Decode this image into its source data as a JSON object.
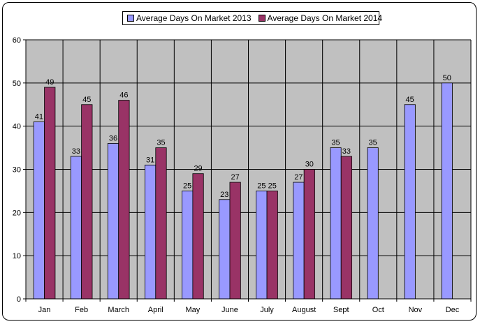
{
  "chart_data": {
    "type": "bar",
    "categories": [
      "Jan",
      "Feb",
      "March",
      "April",
      "May",
      "June",
      "July",
      "August",
      "Sept",
      "Oct",
      "Nov",
      "Dec"
    ],
    "series": [
      {
        "name": "Average Days On Market 2013",
        "color": "#9999FF",
        "values": [
          41,
          33,
          36,
          31,
          25,
          23,
          25,
          27,
          35,
          35,
          45,
          50
        ]
      },
      {
        "name": "Average Days On Market 2014",
        "color": "#993366",
        "values": [
          49,
          45,
          46,
          35,
          29,
          27,
          25,
          30,
          33,
          null,
          null,
          null
        ]
      }
    ],
    "y_ticks": [
      "0",
      "10",
      "20",
      "30",
      "40",
      "50",
      "60"
    ],
    "ylim": [
      0,
      60
    ],
    "plot_background": "#C0C0C0",
    "grid": true,
    "legend_position": "top-center",
    "data_labels": true
  }
}
